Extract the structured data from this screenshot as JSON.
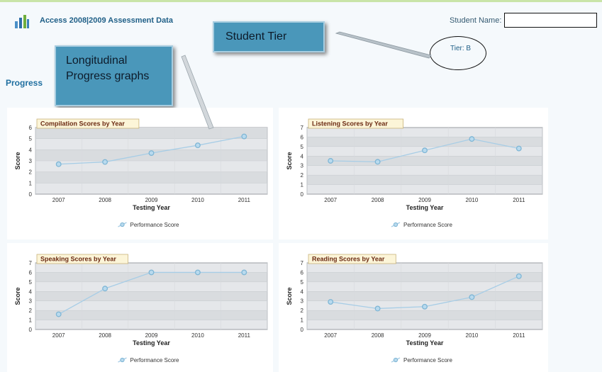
{
  "header": {
    "app_title": "Access 2008|2009 Assessment Data",
    "student_name_label": "Student Name:",
    "student_name_value": ""
  },
  "callouts": {
    "student_tier": "Student Tier",
    "longitudinal_line1": "Longitudinal",
    "longitudinal_line2": "Progress graphs"
  },
  "tier_label": "Tier: B",
  "section_label": "Progress",
  "colors": {
    "accent": "#1f6fa0",
    "callout_fill": "#4a97ba",
    "plot_bg": "#e5e7ea",
    "line": "#a7cde6",
    "marker": "#7fb6d5"
  },
  "chart_data": [
    {
      "type": "line",
      "title": "Compilation Scores by Year",
      "x": [
        "2007",
        "2008",
        "2009",
        "2010",
        "2011"
      ],
      "series": [
        {
          "name": "Performance Score",
          "values": [
            2.7,
            2.9,
            3.7,
            4.4,
            5.2
          ]
        }
      ],
      "xlabel": "Testing Year",
      "ylabel": "Score",
      "ylim": [
        0,
        6
      ],
      "legend": "bottom"
    },
    {
      "type": "line",
      "title": "Listening Scores by Year",
      "x": [
        "2007",
        "2008",
        "2009",
        "2010",
        "2011"
      ],
      "series": [
        {
          "name": "Performance Score",
          "values": [
            3.5,
            3.4,
            4.6,
            5.8,
            4.8
          ]
        }
      ],
      "xlabel": "Testing Year",
      "ylabel": "Score",
      "ylim": [
        0,
        7
      ],
      "legend": "bottom"
    },
    {
      "type": "line",
      "title": "Speaking Scores by Year",
      "x": [
        "2007",
        "2008",
        "2009",
        "2010",
        "2011"
      ],
      "series": [
        {
          "name": "Performance Score",
          "values": [
            1.6,
            4.3,
            6,
            6,
            6
          ]
        }
      ],
      "xlabel": "Testing Year",
      "ylabel": "Score",
      "ylim": [
        0,
        7
      ],
      "legend": "bottom"
    },
    {
      "type": "line",
      "title": "Reading Scores by Year",
      "x": [
        "2007",
        "2008",
        "2009",
        "2010",
        "2011"
      ],
      "series": [
        {
          "name": "Performance Score",
          "values": [
            2.9,
            2.2,
            2.4,
            3.4,
            5.6
          ]
        }
      ],
      "xlabel": "Testing Year",
      "ylabel": "Score",
      "ylim": [
        0,
        7
      ],
      "legend": "bottom"
    }
  ]
}
